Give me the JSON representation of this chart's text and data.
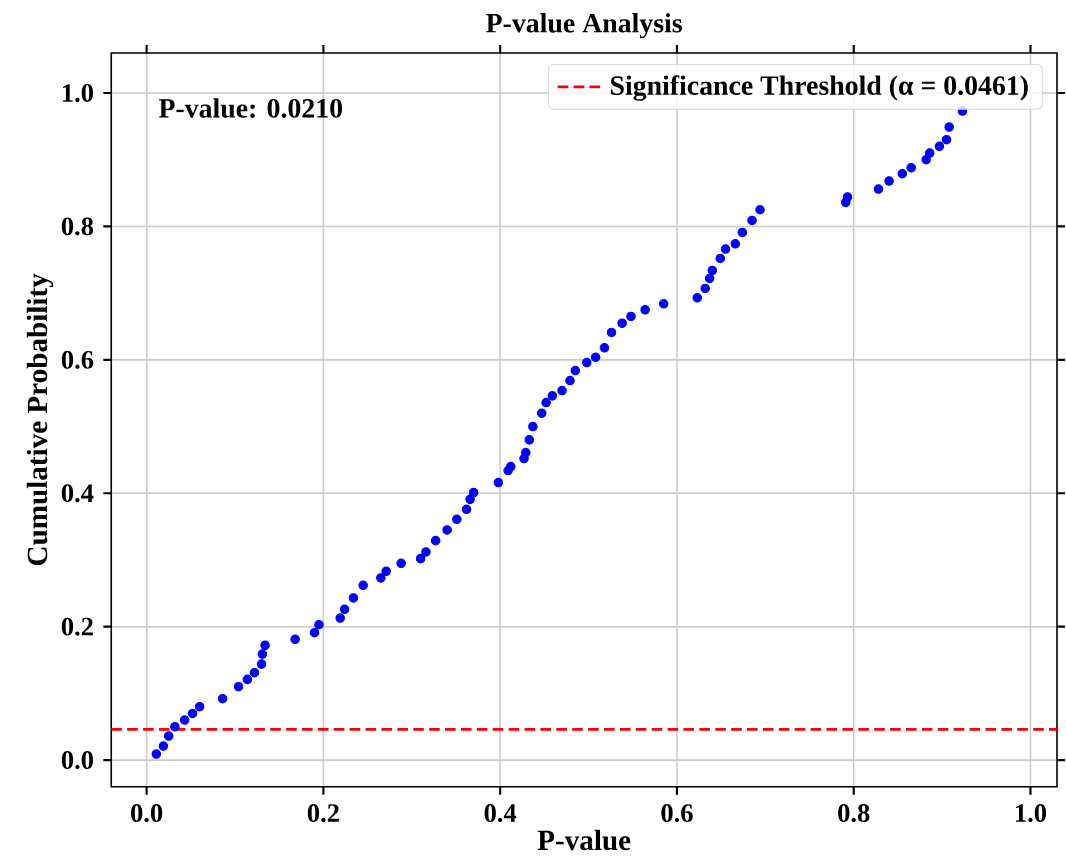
{
  "chart_data": {
    "type": "scatter",
    "title": "P-value Analysis",
    "xlabel": "P-value",
    "ylabel": "Cumulative Probability",
    "annotations": [
      "P-value: 0.0210"
    ],
    "series": [
      {
        "color": "#0000ff",
        "x": [
          0.011,
          0.019,
          0.025,
          0.032,
          0.043,
          0.052,
          0.06,
          0.086,
          0.104,
          0.114,
          0.122,
          0.13,
          0.131,
          0.134,
          0.168,
          0.19,
          0.195,
          0.219,
          0.224,
          0.234,
          0.245,
          0.265,
          0.271,
          0.288,
          0.31,
          0.316,
          0.327,
          0.34,
          0.351,
          0.362,
          0.366,
          0.37,
          0.398,
          0.409,
          0.412,
          0.427,
          0.429,
          0.433,
          0.437,
          0.447,
          0.452,
          0.459,
          0.47,
          0.479,
          0.485,
          0.498,
          0.508,
          0.518,
          0.526,
          0.538,
          0.548,
          0.564,
          0.585,
          0.623,
          0.632,
          0.637,
          0.64,
          0.649,
          0.655,
          0.666,
          0.674,
          0.685,
          0.694,
          0.791,
          0.793,
          0.828,
          0.84,
          0.855,
          0.865,
          0.882,
          0.886,
          0.897,
          0.905,
          0.908,
          0.923
        ],
        "values": [
          0.009,
          0.021,
          0.036,
          0.05,
          0.06,
          0.07,
          0.08,
          0.092,
          0.11,
          0.121,
          0.131,
          0.144,
          0.159,
          0.172,
          0.181,
          0.191,
          0.203,
          0.213,
          0.226,
          0.243,
          0.262,
          0.273,
          0.283,
          0.295,
          0.302,
          0.312,
          0.329,
          0.345,
          0.361,
          0.376,
          0.391,
          0.401,
          0.416,
          0.434,
          0.44,
          0.452,
          0.461,
          0.48,
          0.5,
          0.52,
          0.536,
          0.546,
          0.554,
          0.569,
          0.584,
          0.596,
          0.604,
          0.618,
          0.641,
          0.655,
          0.665,
          0.675,
          0.684,
          0.693,
          0.707,
          0.722,
          0.734,
          0.752,
          0.766,
          0.774,
          0.791,
          0.809,
          0.825,
          0.836,
          0.844,
          0.856,
          0.868,
          0.879,
          0.888,
          0.9,
          0.91,
          0.92,
          0.93,
          0.949,
          0.973
        ]
      }
    ],
    "ref_lines": [
      {
        "axis": "y",
        "value": 0.0461,
        "label": "Significance Threshold (α = 0.0461)",
        "color": "#ff0000",
        "line_style": "dashed"
      }
    ],
    "xlim": [
      -0.04,
      1.03
    ],
    "ylim": [
      -0.04,
      1.06
    ],
    "xticks": [
      {
        "value": 0,
        "label": "0.0"
      },
      {
        "value": 0.2,
        "label": "0.2"
      },
      {
        "value": 0.4,
        "label": "0.4"
      },
      {
        "value": 0.6,
        "label": "0.6"
      },
      {
        "value": 0.8,
        "label": "0.8"
      },
      {
        "value": 1,
        "label": "1.0"
      }
    ],
    "yticks": [
      {
        "value": 0,
        "label": "0.0"
      },
      {
        "value": 0.2,
        "label": "0.2"
      },
      {
        "value": 0.4,
        "label": "0.4"
      },
      {
        "value": 0.6,
        "label": "0.6"
      },
      {
        "value": 0.8,
        "label": "0.8"
      },
      {
        "value": 1,
        "label": "1.0"
      }
    ],
    "grid": true,
    "legend": "top right",
    "marker": "circle"
  }
}
